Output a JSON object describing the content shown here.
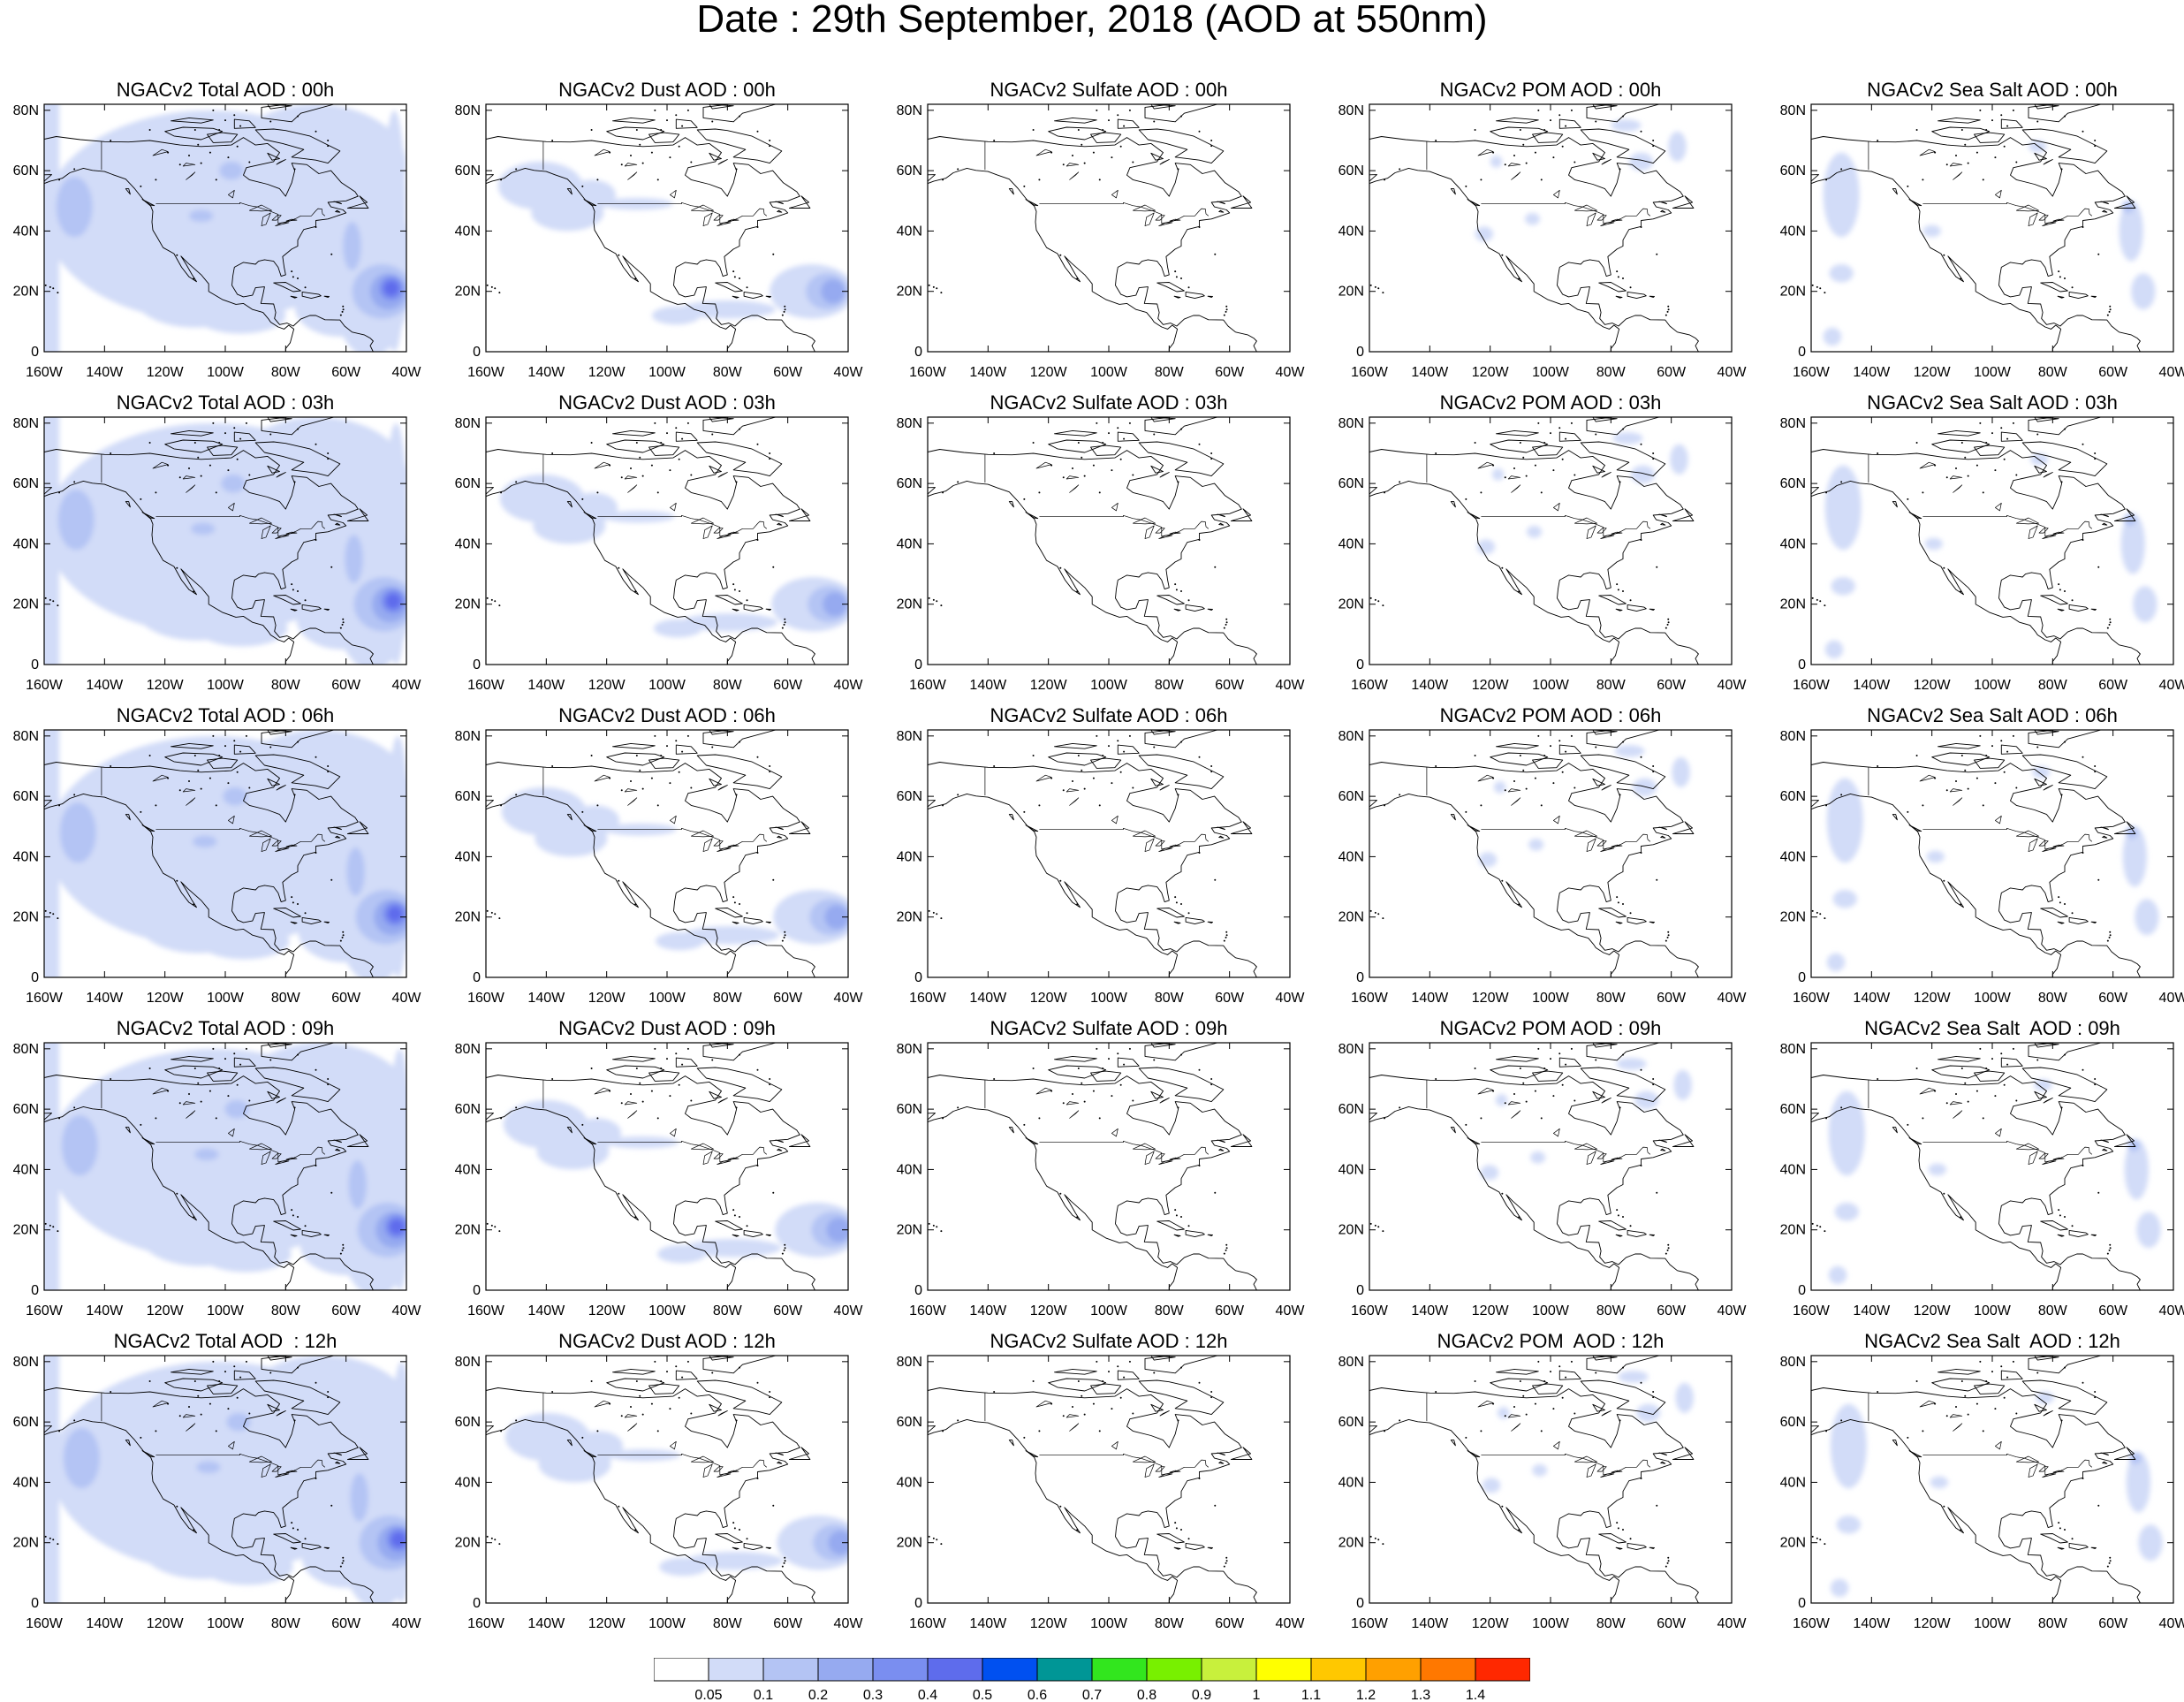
{
  "title": "Date : 29th September, 2018 (AOD at 550nm)",
  "map": {
    "y_ticks": [
      "0",
      "20N",
      "40N",
      "60N",
      "80N"
    ],
    "x_ticks": [
      "160W",
      "140W",
      "120W",
      "100W",
      "80W",
      "60W",
      "40W"
    ],
    "lat_range": [
      0,
      82
    ],
    "lon_range": [
      -160,
      -40
    ]
  },
  "panels": [
    {
      "title": "NGACv2 Total AOD : 00h",
      "species": "total"
    },
    {
      "title": "NGACv2 Dust AOD : 00h",
      "species": "dust"
    },
    {
      "title": "NGACv2 Sulfate AOD : 00h",
      "species": "sulfate"
    },
    {
      "title": "NGACv2 POM AOD : 00h",
      "species": "pom"
    },
    {
      "title": "NGACv2 Sea Salt AOD : 00h",
      "species": "seasalt"
    },
    {
      "title": "NGACv2 Total AOD : 03h",
      "species": "total"
    },
    {
      "title": "NGACv2 Dust AOD : 03h",
      "species": "dust"
    },
    {
      "title": "NGACv2 Sulfate AOD : 03h",
      "species": "sulfate"
    },
    {
      "title": "NGACv2 POM AOD : 03h",
      "species": "pom"
    },
    {
      "title": "NGACv2 Sea Salt AOD : 03h",
      "species": "seasalt"
    },
    {
      "title": "NGACv2 Total AOD : 06h",
      "species": "total"
    },
    {
      "title": "NGACv2 Dust AOD : 06h",
      "species": "dust"
    },
    {
      "title": "NGACv2 Sulfate AOD : 06h",
      "species": "sulfate"
    },
    {
      "title": "NGACv2 POM AOD : 06h",
      "species": "pom"
    },
    {
      "title": "NGACv2 Sea Salt AOD : 06h",
      "species": "seasalt"
    },
    {
      "title": "NGACv2 Total AOD : 09h",
      "species": "total"
    },
    {
      "title": "NGACv2 Dust AOD : 09h",
      "species": "dust"
    },
    {
      "title": "NGACv2 Sulfate AOD : 09h",
      "species": "sulfate"
    },
    {
      "title": "NGACv2 POM AOD : 09h",
      "species": "pom"
    },
    {
      "title": "NGACv2 Sea Salt  AOD : 09h",
      "species": "seasalt"
    },
    {
      "title": "NGACv2 Total AOD  : 12h",
      "species": "total"
    },
    {
      "title": "NGACv2 Dust AOD : 12h",
      "species": "dust"
    },
    {
      "title": "NGACv2 Sulfate AOD : 12h",
      "species": "sulfate"
    },
    {
      "title": "NGACv2 POM  AOD : 12h",
      "species": "pom"
    },
    {
      "title": "NGACv2 Sea Salt  AOD : 12h",
      "species": "seasalt"
    }
  ],
  "colorbar": {
    "labels": [
      "0.05",
      "0.1",
      "0.2",
      "0.3",
      "0.4",
      "0.5",
      "0.6",
      "0.7",
      "0.8",
      "0.9",
      "1",
      "1.1",
      "1.2",
      "1.3",
      "1.4"
    ],
    "colors": [
      "#ffffff",
      "#d2dcf8",
      "#b4c4f4",
      "#96aaf0",
      "#7a8ef0",
      "#5e6cec",
      "#0050f0",
      "#009696",
      "#32e61e",
      "#78f000",
      "#c8f03c",
      "#ffff00",
      "#ffc800",
      "#ffa000",
      "#ff7800",
      "#ff2800"
    ]
  }
}
